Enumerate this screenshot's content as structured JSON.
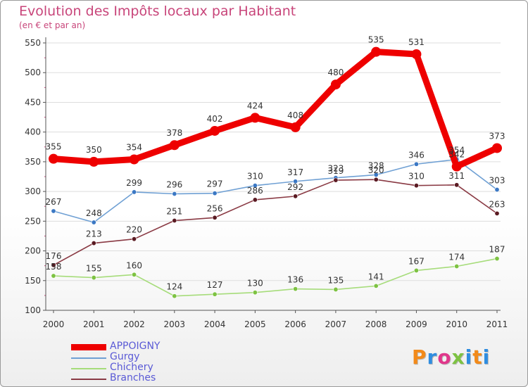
{
  "header": {
    "title": "Evolution des Impôts locaux par Habitant",
    "subtitle": "(en € et par an)"
  },
  "logo": {
    "text": "Proxiti",
    "colors": [
      "#f28a1a",
      "#2f8de0",
      "#e0378b",
      "#7dc242",
      "#2f8de0",
      "#f28a1a",
      "#2f8de0"
    ]
  },
  "chart_data": {
    "type": "line",
    "title": "Evolution des Impôts locaux par Habitant",
    "subtitle": "(en € et par an)",
    "xlabel": "",
    "ylabel": "",
    "x": [
      "2000",
      "2001",
      "2002",
      "2003",
      "2004",
      "2005",
      "2006",
      "2007",
      "2008",
      "2009",
      "2010",
      "2011"
    ],
    "ylim": [
      100,
      550
    ],
    "yticks": [
      "100",
      "150",
      "200",
      "250",
      "300",
      "350",
      "400",
      "450",
      "500",
      "550"
    ],
    "grid": true,
    "legend_position": "bottom-left",
    "series": [
      {
        "name": "APPOIGNY",
        "color": "#ee0000",
        "marker_color": "#ee0000",
        "values": [
          355,
          350,
          354,
          378,
          402,
          424,
          408,
          480,
          535,
          531,
          342,
          373
        ],
        "labels": [
          "355",
          "350",
          "354",
          "378",
          "402",
          "424",
          "408",
          "480",
          "535",
          "531",
          "342",
          "373"
        ]
      },
      {
        "name": "Gurgy",
        "color": "#6fa0d4",
        "marker_color": "#3b78c4",
        "values": [
          267,
          248,
          299,
          296,
          297,
          310,
          317,
          323,
          328,
          346,
          354,
          303
        ],
        "labels": [
          "267",
          "248",
          "299",
          "296",
          "297",
          "310",
          "317",
          "323",
          "328",
          "346",
          "354",
          "303"
        ]
      },
      {
        "name": "Chichery",
        "color": "#a6dc7a",
        "marker_color": "#7dc242",
        "values": [
          158,
          155,
          160,
          124,
          127,
          130,
          136,
          135,
          141,
          167,
          174,
          187
        ],
        "labels": [
          "158",
          "155",
          "160",
          "124",
          "127",
          "130",
          "136",
          "135",
          "141",
          "167",
          "174",
          "187"
        ]
      },
      {
        "name": "Branches",
        "color": "#8a3a44",
        "marker_color": "#5a1a22",
        "values": [
          176,
          213,
          220,
          251,
          256,
          286,
          292,
          319,
          320,
          310,
          311,
          263
        ],
        "labels": [
          "176",
          "213",
          "220",
          "251",
          "256",
          "286",
          "292",
          "319",
          "320",
          "310",
          "311",
          "263"
        ]
      }
    ]
  }
}
